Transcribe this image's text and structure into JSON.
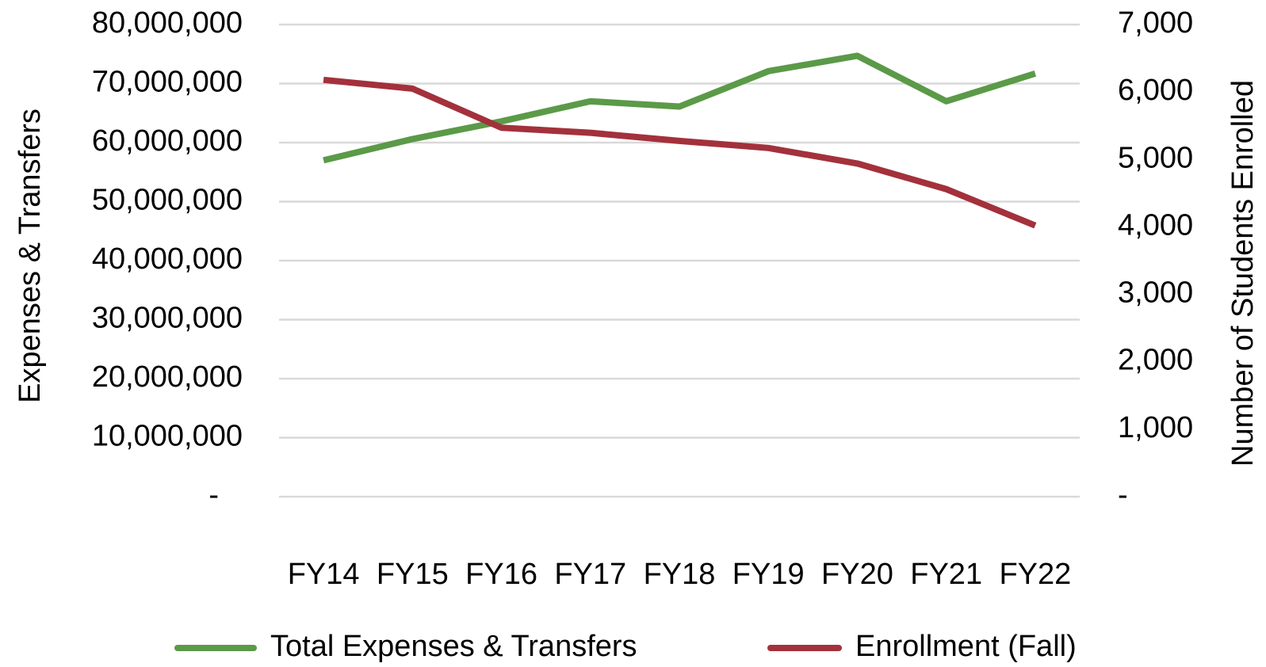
{
  "chart_data": {
    "type": "line",
    "categories": [
      "FY14",
      "FY15",
      "FY16",
      "FY17",
      "FY18",
      "FY19",
      "FY20",
      "FY21",
      "FY22"
    ],
    "y_label": "Expenses & Transfers",
    "y2_label": "Number of Students Enrolled",
    "series": [
      {
        "name": "Total Expenses & Transfers",
        "color": "#5b9a48",
        "values": [
          57000000,
          60600000,
          63600000,
          67000000,
          66100000,
          72100000,
          74700000,
          67000000,
          71700000
        ]
      },
      {
        "name": "Enrollment (Fall)",
        "color": "#a3313c",
        "axis": "y2",
        "values": [
          6180,
          6050,
          5470,
          5395,
          5275,
          5170,
          4940,
          4560,
          4020
        ]
      }
    ],
    "ylim": [
      0,
      80000000
    ],
    "yticks": [
      {
        "value": 0,
        "label": "-"
      },
      {
        "value": 10000000,
        "label": "10,000,000"
      },
      {
        "value": 20000000,
        "label": "20,000,000"
      },
      {
        "value": 30000000,
        "label": "30,000,000"
      },
      {
        "value": 40000000,
        "label": "40,000,000"
      },
      {
        "value": 50000000,
        "label": "50,000,000"
      },
      {
        "value": 60000000,
        "label": "60,000,000"
      },
      {
        "value": 70000000,
        "label": "70,000,000"
      },
      {
        "value": 80000000,
        "label": "80,000,000"
      }
    ],
    "y2lim": [
      0,
      7000
    ],
    "y2ticks": [
      {
        "value": 0,
        "label": "-"
      },
      {
        "value": 1000,
        "label": "1,000"
      },
      {
        "value": 2000,
        "label": "2,000"
      },
      {
        "value": 3000,
        "label": "3,000"
      },
      {
        "value": 4000,
        "label": "4,000"
      },
      {
        "value": 5000,
        "label": "5,000"
      },
      {
        "value": 6000,
        "label": "6,000"
      },
      {
        "value": 7000,
        "label": "7,000"
      }
    ],
    "grid": true,
    "legend": "bottom"
  }
}
